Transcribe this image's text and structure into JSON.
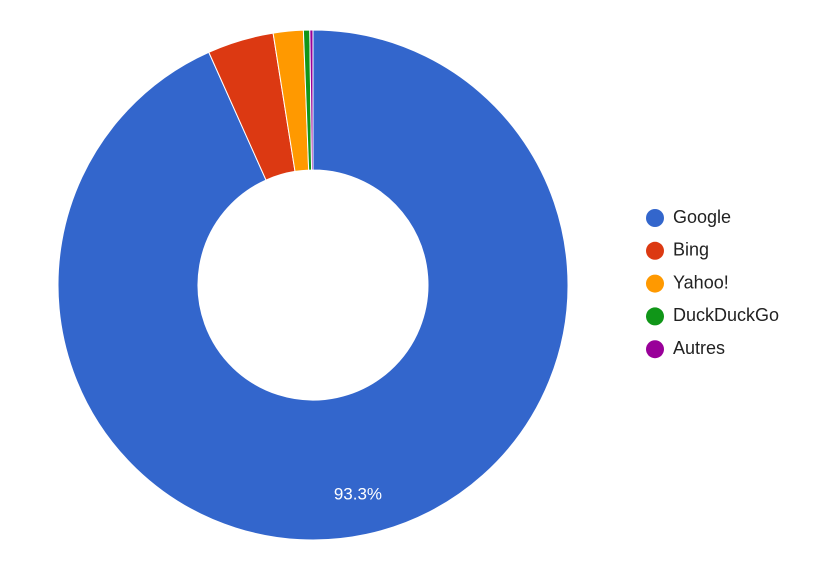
{
  "chart_data": {
    "type": "donut",
    "categories": [
      "Google",
      "Bing",
      "Yahoo!",
      "DuckDuckGo",
      "Autres"
    ],
    "values": [
      93.3,
      4.2,
      1.9,
      0.4,
      0.2
    ],
    "value_labels": [
      "93.3%",
      null,
      null,
      null,
      null
    ],
    "colors": [
      "#3366cc",
      "#dc3912",
      "#ff9900",
      "#109618",
      "#990099"
    ],
    "legend": "right"
  }
}
